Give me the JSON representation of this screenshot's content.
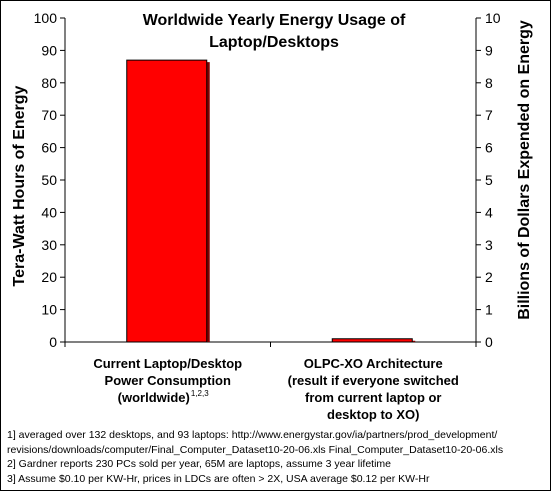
{
  "chart_data": {
    "type": "bar",
    "title_lines": [
      "Worldwide Yearly Energy Usage of",
      "Laptop/Desktops"
    ],
    "categories": [
      {
        "lines": [
          "Current Laptop/Desktop",
          "Power Consumption",
          "(worldwide)"
        ],
        "superscript": "1,2,3"
      },
      {
        "lines": [
          "OLPC-XO Architecture",
          "(result if everyone switched",
          "from current laptop or",
          "desktop to XO)"
        ]
      }
    ],
    "values": [
      87,
      1
    ],
    "ylabel": "Tera-Watt Hours of Energy",
    "y2label": "Billions of Dollars Expended on Energy",
    "ylim": [
      0,
      100
    ],
    "yticks": [
      "0",
      "10",
      "20",
      "30",
      "40",
      "50",
      "60",
      "70",
      "80",
      "90",
      "100"
    ],
    "y2lim": [
      0,
      10
    ],
    "y2ticks": [
      "0",
      "1",
      "2",
      "3",
      "4",
      "5",
      "6",
      "7",
      "8",
      "9",
      "10"
    ],
    "grid": false,
    "legend": "none",
    "bar_color": "#ff0000",
    "bar_shadow_color": "#800000"
  },
  "footnotes": [
    "1] averaged over 132 desktops, and 93 laptops: http://www.energystar.gov/ia/partners/prod_development/",
    "revisions/downloads/computer/Final_Computer_Dataset10-20-06.xls Final_Computer_Dataset10-20-06.xls",
    "2] Gardner reports 230 PCs sold per year, 65M are laptops, assume 3 year lifetime",
    "3] Assume $0.10 per KW-Hr, prices in LDCs are often > 2X,  USA average $0.12 per KW-Hr"
  ]
}
